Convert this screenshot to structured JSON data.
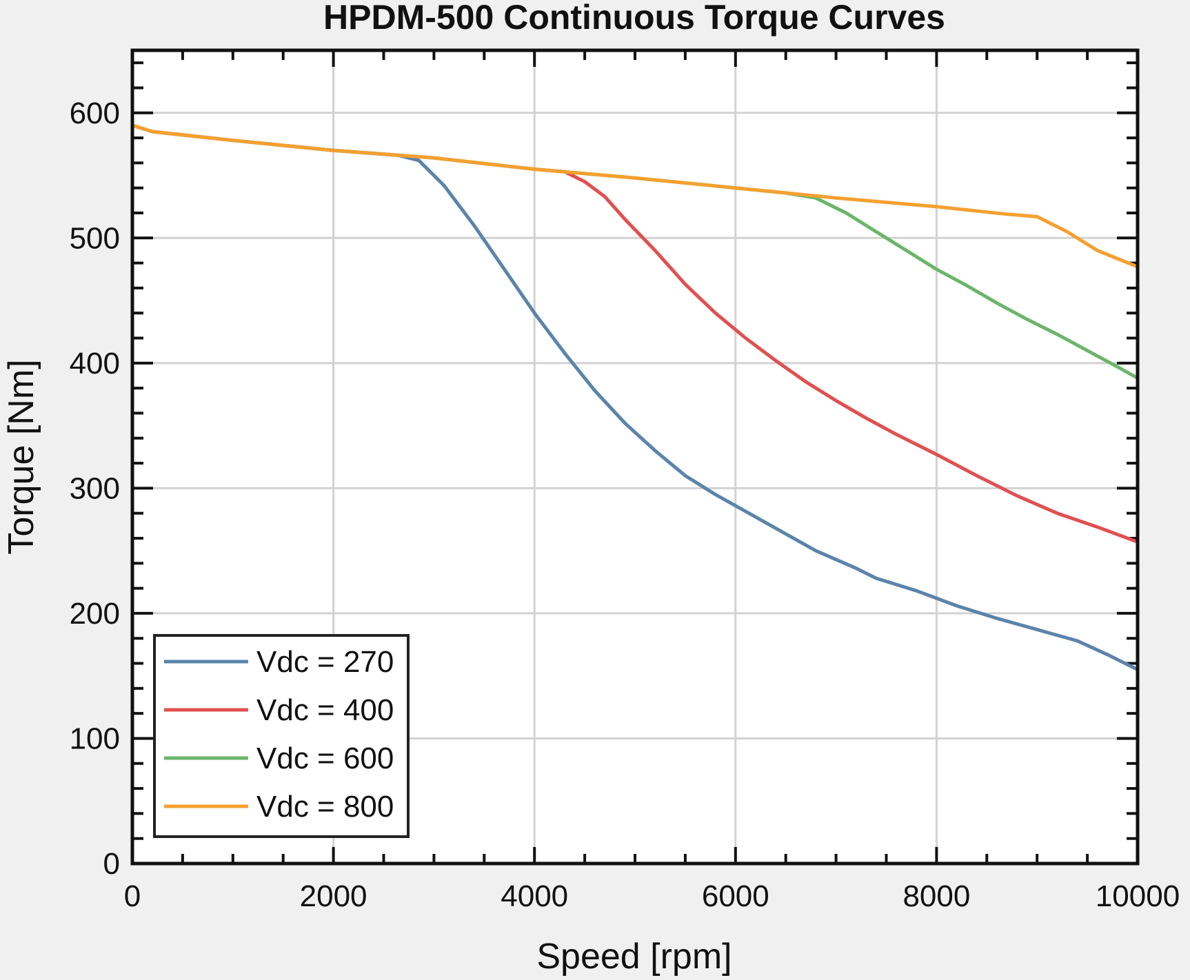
{
  "chart_data": {
    "type": "line",
    "title": "HPDM-500 Continuous Torque Curves",
    "xlabel": "Speed [rpm]",
    "ylabel": "Torque [Nm]",
    "xlim": [
      0,
      10000
    ],
    "ylim": [
      0,
      650
    ],
    "xticks": [
      0,
      2000,
      4000,
      6000,
      8000,
      10000
    ],
    "xtick_labels": [
      "0",
      "2000",
      "4000",
      "6000",
      "8000",
      "10000"
    ],
    "yticks": [
      0,
      100,
      200,
      300,
      400,
      500,
      600
    ],
    "ytick_labels": [
      "0",
      "100",
      "200",
      "300",
      "400",
      "500",
      "600"
    ],
    "grid": true,
    "legend_position": "bottom-left",
    "series": [
      {
        "name": "Vdc = 270",
        "color": "#5b84ab",
        "x": [
          0,
          200,
          1000,
          2000,
          2650,
          2850,
          3100,
          3400,
          3700,
          4000,
          4300,
          4600,
          4900,
          5200,
          5500,
          5800,
          6000,
          6400,
          6800,
          7200,
          7400,
          7800,
          8200,
          8600,
          9000,
          9400,
          9700,
          10000
        ],
        "y": [
          590,
          585,
          578,
          570,
          566,
          562,
          542,
          510,
          475,
          440,
          408,
          378,
          352,
          330,
          310,
          295,
          286,
          268,
          250,
          236,
          228,
          218,
          206,
          196,
          187,
          178,
          167,
          155
        ]
      },
      {
        "name": "Vdc = 400",
        "color": "#e05050",
        "x": [
          0,
          200,
          1000,
          2000,
          3000,
          4000,
          4300,
          4500,
          4700,
          4900,
          5200,
          5500,
          5800,
          6100,
          6400,
          6700,
          7000,
          7300,
          7600,
          8000,
          8400,
          8800,
          9200,
          9600,
          10000
        ],
        "y": [
          590,
          585,
          578,
          570,
          564,
          555,
          553,
          545,
          533,
          515,
          490,
          463,
          440,
          420,
          402,
          385,
          370,
          356,
          343,
          327,
          310,
          294,
          280,
          269,
          257
        ]
      },
      {
        "name": "Vdc = 600",
        "color": "#6bb56b",
        "x": [
          0,
          200,
          1000,
          2000,
          3000,
          4000,
          5000,
          6000,
          6500,
          6800,
          7100,
          7400,
          7700,
          8000,
          8300,
          8600,
          8900,
          9200,
          9500,
          9800,
          10000
        ],
        "y": [
          590,
          585,
          578,
          570,
          564,
          555,
          548,
          540,
          536,
          532,
          520,
          505,
          490,
          475,
          462,
          448,
          435,
          423,
          410,
          397,
          388
        ]
      },
      {
        "name": "Vdc = 800",
        "color": "#f5a030",
        "x": [
          0,
          200,
          1000,
          2000,
          3000,
          4000,
          5000,
          6000,
          7000,
          8000,
          8700,
          9000,
          9300,
          9600,
          10000
        ],
        "y": [
          590,
          585,
          578,
          570,
          564,
          555,
          548,
          540,
          532,
          525,
          519,
          517,
          505,
          490,
          477
        ]
      }
    ]
  }
}
